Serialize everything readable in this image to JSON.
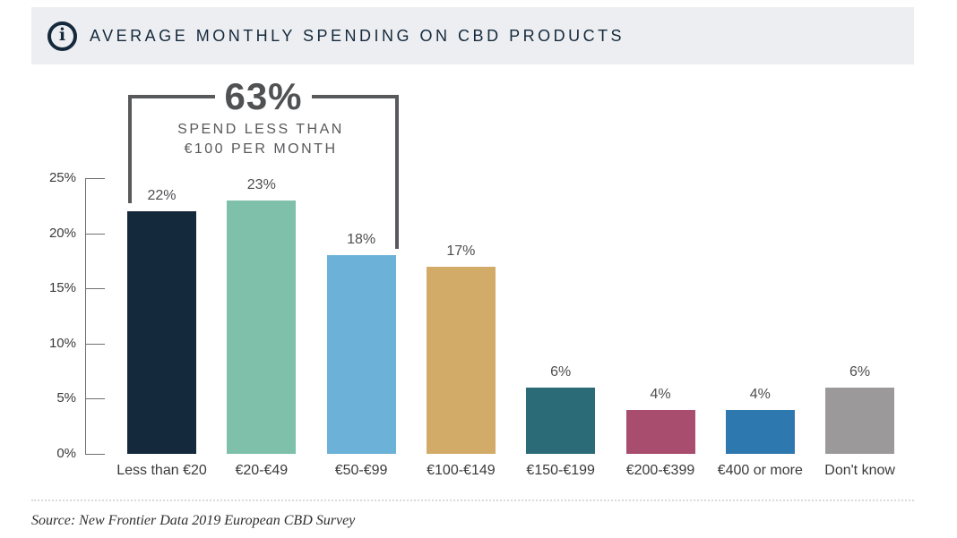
{
  "header": {
    "title": "AVERAGE MONTHLY SPENDING ON CBD PRODUCTS",
    "icon": "info-icon",
    "background_color": "#ECEEF1",
    "text_color": "#14293C"
  },
  "callout": {
    "value": "63%",
    "caption_line1": "SPEND LESS THAN",
    "caption_line2": "€100 PER MONTH",
    "color": "#58595B",
    "spans_categories": [
      0,
      2
    ]
  },
  "chart_data": {
    "type": "bar",
    "title": "AVERAGE MONTHLY SPENDING ON CBD PRODUCTS",
    "categories": [
      "Less than €20",
      "€20-€49",
      "€50-€99",
      "€100-€149",
      "€150-€199",
      "€200-€399",
      "€400 or more",
      "Don't know"
    ],
    "values": [
      22,
      23,
      18,
      17,
      6,
      4,
      4,
      6
    ],
    "value_labels": [
      "22%",
      "23%",
      "18%",
      "17%",
      "6%",
      "4%",
      "4%",
      "6%"
    ],
    "bar_colors": [
      "#14293C",
      "#7EC0A9",
      "#6CB2D8",
      "#D3AB69",
      "#2B6B77",
      "#A84D6D",
      "#2E78B0",
      "#9C999A"
    ],
    "xlabel": "",
    "ylabel": "",
    "ylim": [
      0,
      25
    ],
    "yticks": [
      "0%",
      "5%",
      "10%",
      "15%",
      "20%",
      "25%"
    ],
    "grid": false,
    "legend": null,
    "annotation": {
      "value": "63%",
      "text": "SPEND LESS THAN €100 PER MONTH",
      "covers": [
        "Less than €20",
        "€20-€49",
        "€50-€99"
      ]
    }
  },
  "footer": {
    "source": "Source: New Frontier Data 2019 European CBD Survey"
  }
}
